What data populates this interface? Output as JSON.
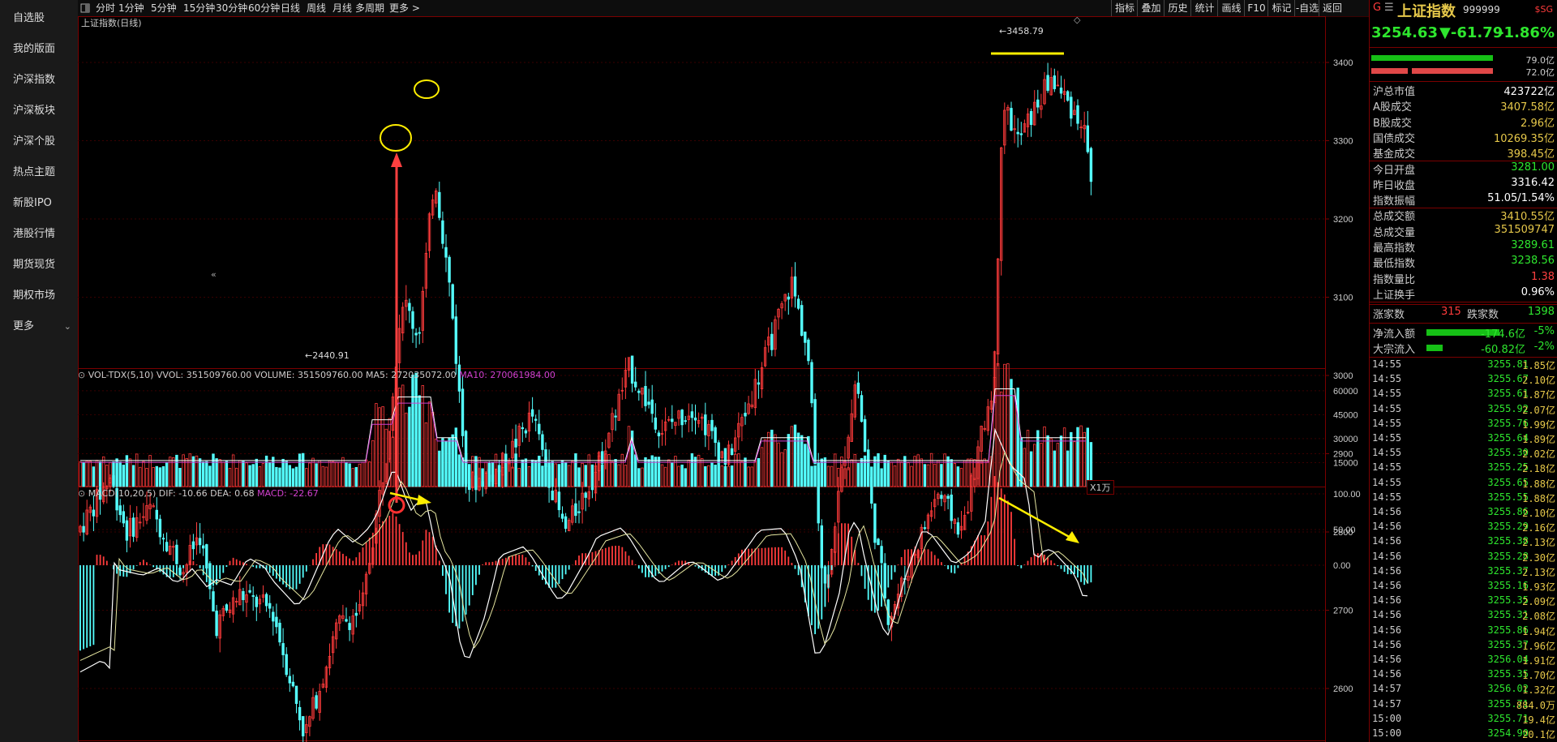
{
  "sidebar": {
    "items": [
      "自选股",
      "我的版面",
      "沪深指数",
      "沪深板块",
      "沪深个股",
      "热点主题",
      "新股IPO",
      "港股行情",
      "期货现货",
      "期权市场",
      "更多"
    ]
  },
  "toolbar": {
    "periods": [
      "分时",
      "1分钟",
      "5分钟",
      "15分钟",
      "30分钟",
      "60分钟",
      "日线",
      "周线",
      "月线",
      "多周期",
      "更多 >"
    ],
    "right": [
      "指标",
      "叠加",
      "历史",
      "统计",
      "画线",
      "F10",
      "标记",
      "-自选",
      "返回"
    ]
  },
  "chart": {
    "title": "上证指数(日线)",
    "high_label": "3458.79",
    "low_label": "2440.91",
    "price_ticks": [
      "3400",
      "3300",
      "3200",
      "3100",
      "3000",
      "2900",
      "2800",
      "2700",
      "2600"
    ],
    "volume_title": "VOL-TDX(5,10)",
    "vvol": "VVOL: 351509760.00",
    "volume_val": "VOLUME: 351509760.00",
    "ma5": "MA5: 272035072.00",
    "ma10": "MA10: 270061984.00",
    "volume_ticks": [
      "60000",
      "45000",
      "30000",
      "15000"
    ],
    "volume_unit": "X1万",
    "macd_title": "MACD(10,20,5)",
    "dif": "DIF: -10.66",
    "dea": "DEA: 0.68",
    "macd": "MACD: -22.67",
    "macd_ticks": [
      "100.00",
      "50.00",
      "0.00"
    ]
  },
  "panel": {
    "name": "上证指数",
    "code": "999999",
    "sg": "SG",
    "price": "3254.63",
    "change": "▼-61.79",
    "pct": "-1.86%",
    "bar1": "79.0亿",
    "bar2": "72.0亿",
    "stats": [
      {
        "label": "沪总市值",
        "value": "423722亿",
        "color": "#ffffff"
      },
      {
        "label": "A股成交",
        "value": "3407.58亿",
        "color": "#e6c84a"
      },
      {
        "label": "B股成交",
        "value": "2.96亿",
        "color": "#e6c84a"
      },
      {
        "label": "国债成交",
        "value": "10269.35亿",
        "color": "#e6c84a"
      },
      {
        "label": "基金成交",
        "value": "398.45亿",
        "color": "#e6c84a"
      },
      {
        "label": "今日开盘",
        "value": "3281.00",
        "color": "#2ee62e"
      },
      {
        "label": "昨日收盘",
        "value": "3316.42",
        "color": "#ffffff"
      },
      {
        "label": "指数振幅",
        "value": "51.05/1.54%",
        "color": "#ffffff"
      },
      {
        "label": "总成交额",
        "value": "3410.55亿",
        "color": "#e6c84a"
      },
      {
        "label": "总成交量",
        "value": "351509747",
        "color": "#e6c84a"
      },
      {
        "label": "最高指数",
        "value": "3289.61",
        "color": "#2ee62e"
      },
      {
        "label": "最低指数",
        "value": "3238.56",
        "color": "#2ee62e"
      },
      {
        "label": "指数量比",
        "value": "1.38",
        "color": "#ff4040"
      },
      {
        "label": "上证换手",
        "value": "0.96%",
        "color": "#ffffff"
      }
    ],
    "up_label": "涨家数",
    "up_count": "315",
    "down_label": "跌家数",
    "down_count": "1398",
    "flows": [
      {
        "label": "净流入额",
        "value": "-174.6亿",
        "pct": "-5%"
      },
      {
        "label": "大宗流入",
        "value": "-60.82亿",
        "pct": "-2%"
      }
    ],
    "ticks": [
      {
        "t": "14:55",
        "p": "3255.81",
        "v": "1.85亿"
      },
      {
        "t": "14:55",
        "p": "3255.67",
        "v": "2.10亿"
      },
      {
        "t": "14:55",
        "p": "3255.61",
        "v": "1.87亿"
      },
      {
        "t": "14:55",
        "p": "3255.92",
        "v": "2.07亿"
      },
      {
        "t": "14:55",
        "p": "3255.76",
        "v": "1.99亿"
      },
      {
        "t": "14:55",
        "p": "3255.64",
        "v": "1.89亿"
      },
      {
        "t": "14:55",
        "p": "3255.30",
        "v": "2.02亿"
      },
      {
        "t": "14:55",
        "p": "3255.25",
        "v": "2.18亿"
      },
      {
        "t": "14:55",
        "p": "3255.65",
        "v": "1.88亿"
      },
      {
        "t": "14:55",
        "p": "3255.55",
        "v": "1.88亿"
      },
      {
        "t": "14:56",
        "p": "3255.86",
        "v": "2.10亿"
      },
      {
        "t": "14:56",
        "p": "3255.29",
        "v": "2.16亿"
      },
      {
        "t": "14:56",
        "p": "3255.38",
        "v": "2.13亿"
      },
      {
        "t": "14:56",
        "p": "3255.28",
        "v": "2.30亿"
      },
      {
        "t": "14:56",
        "p": "3255.37",
        "v": "2.13亿"
      },
      {
        "t": "14:56",
        "p": "3255.16",
        "v": "1.93亿"
      },
      {
        "t": "14:56",
        "p": "3255.35",
        "v": "2.09亿"
      },
      {
        "t": "14:56",
        "p": "3255.31",
        "v": "2.08亿"
      },
      {
        "t": "14:56",
        "p": "3255.86",
        "v": "1.94亿"
      },
      {
        "t": "14:56",
        "p": "3255.37",
        "v": "1.96亿"
      },
      {
        "t": "14:56",
        "p": "3256.04",
        "v": "1.91亿"
      },
      {
        "t": "14:56",
        "p": "3255.35",
        "v": "1.70亿"
      },
      {
        "t": "14:57",
        "p": "3256.02",
        "v": "1.32亿"
      },
      {
        "t": "14:57",
        "p": "3255.71",
        "v": "884.0万"
      },
      {
        "t": "15:00",
        "p": "3255.71",
        "v": "19.4亿"
      },
      {
        "t": "15:00",
        "p": "3254.90",
        "v": "20.1亿"
      }
    ]
  },
  "colors": {
    "up": "#ff3b3b",
    "down": "#54ffff",
    "down_panel": "#2ee62e",
    "text_yellow": "#e6c84a",
    "ma10": "#d040d0",
    "white_line": "#ffffff",
    "annot_yellow": "#ffee00",
    "annot_red": "#ff3030"
  }
}
